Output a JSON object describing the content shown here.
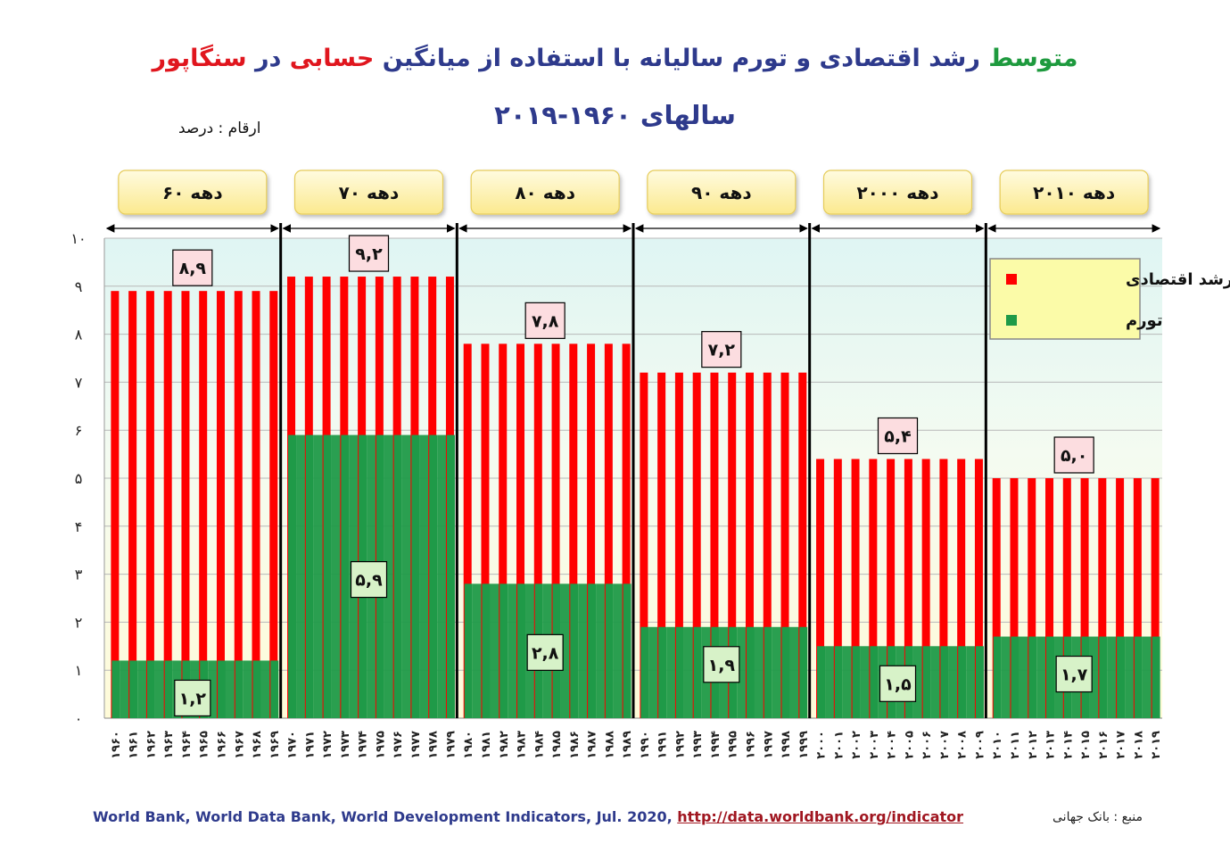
{
  "title": {
    "part1": "متوسط",
    "part2": " رشد اقتصادی و تورم سالیانه با استفاده از میانگین ",
    "part3": "حسابی",
    "part4": " در ",
    "part5": "سنگاپور",
    "line2": "سالهای ۱۹۶۰-۲۰۱۹"
  },
  "units_label": "ارقام : درصد",
  "footer": {
    "source_text": "World Bank, World Data Bank, World Development Indicators, Jul. 2020, ",
    "source_link": "http://data.worldbank.org/indicator",
    "source_label": "منبع : بانک جهانی"
  },
  "colors": {
    "growth": "#ff0000",
    "inflation": "#1f9a48",
    "title_blue": "#2e3a8c",
    "title_green": "#1e9a3e",
    "title_red": "#e0161e"
  },
  "chart_data": {
    "type": "bar",
    "ylim": [
      0,
      10
    ],
    "y_ticks": [
      "۰",
      "۱",
      "۲",
      "۳",
      "۴",
      "۵",
      "۶",
      "۷",
      "۸",
      "۹",
      "۱۰"
    ],
    "legend": {
      "placement": "top-right",
      "entries": [
        {
          "label": "رشد اقتصادی",
          "color": "#ff0000"
        },
        {
          "label": "تورم",
          "color": "#1f9a48"
        }
      ]
    },
    "decades": [
      {
        "label": "دهه ۶۰",
        "growth": 8.9,
        "inflation": 1.2,
        "growth_label": "۸,۹",
        "inflation_label": "۱,۲",
        "years": [
          "۱۹۶۰",
          "۱۹۶۱",
          "۱۹۶۲",
          "۱۹۶۳",
          "۱۹۶۴",
          "۱۹۶۵",
          "۱۹۶۶",
          "۱۹۶۷",
          "۱۹۶۸",
          "۱۹۶۹"
        ]
      },
      {
        "label": "دهه ۷۰",
        "growth": 9.2,
        "inflation": 5.9,
        "growth_label": "۹,۲",
        "inflation_label": "۵,۹",
        "years": [
          "۱۹۷۰",
          "۱۹۷۱",
          "۱۹۷۲",
          "۱۹۷۳",
          "۱۹۷۴",
          "۱۹۷۵",
          "۱۹۷۶",
          "۱۹۷۷",
          "۱۹۷۸",
          "۱۹۷۹"
        ]
      },
      {
        "label": "دهه ۸۰",
        "growth": 7.8,
        "inflation": 2.8,
        "growth_label": "۷,۸",
        "inflation_label": "۲,۸",
        "years": [
          "۱۹۸۰",
          "۱۹۸۱",
          "۱۹۸۲",
          "۱۹۸۳",
          "۱۹۸۴",
          "۱۹۸۵",
          "۱۹۸۶",
          "۱۹۸۷",
          "۱۹۸۸",
          "۱۹۸۹"
        ]
      },
      {
        "label": "دهه ۹۰",
        "growth": 7.2,
        "inflation": 1.9,
        "growth_label": "۷,۲",
        "inflation_label": "۱,۹",
        "years": [
          "۱۹۹۰",
          "۱۹۹۱",
          "۱۹۹۲",
          "۱۹۹۳",
          "۱۹۹۴",
          "۱۹۹۵",
          "۱۹۹۶",
          "۱۹۹۷",
          "۱۹۹۸",
          "۱۹۹۹"
        ]
      },
      {
        "label": "دهه ۲۰۰۰",
        "growth": 5.4,
        "inflation": 1.5,
        "growth_label": "۵,۴",
        "inflation_label": "۱,۵",
        "years": [
          "۲۰۰۰",
          "۲۰۰۱",
          "۲۰۰۲",
          "۲۰۰۳",
          "۲۰۰۴",
          "۲۰۰۵",
          "۲۰۰۶",
          "۲۰۰۷",
          "۲۰۰۸",
          "۲۰۰۹"
        ]
      },
      {
        "label": "دهه ۲۰۱۰",
        "growth": 5.0,
        "inflation": 1.7,
        "growth_label": "۵,۰",
        "inflation_label": "۱,۷",
        "years": [
          "۲۰۱۰",
          "۲۰۱۱",
          "۲۰۱۲",
          "۲۰۱۳",
          "۲۰۱۴",
          "۲۰۱۵",
          "۲۰۱۶",
          "۲۰۱۷",
          "۲۰۱۸",
          "۲۰۱۹"
        ]
      }
    ]
  }
}
